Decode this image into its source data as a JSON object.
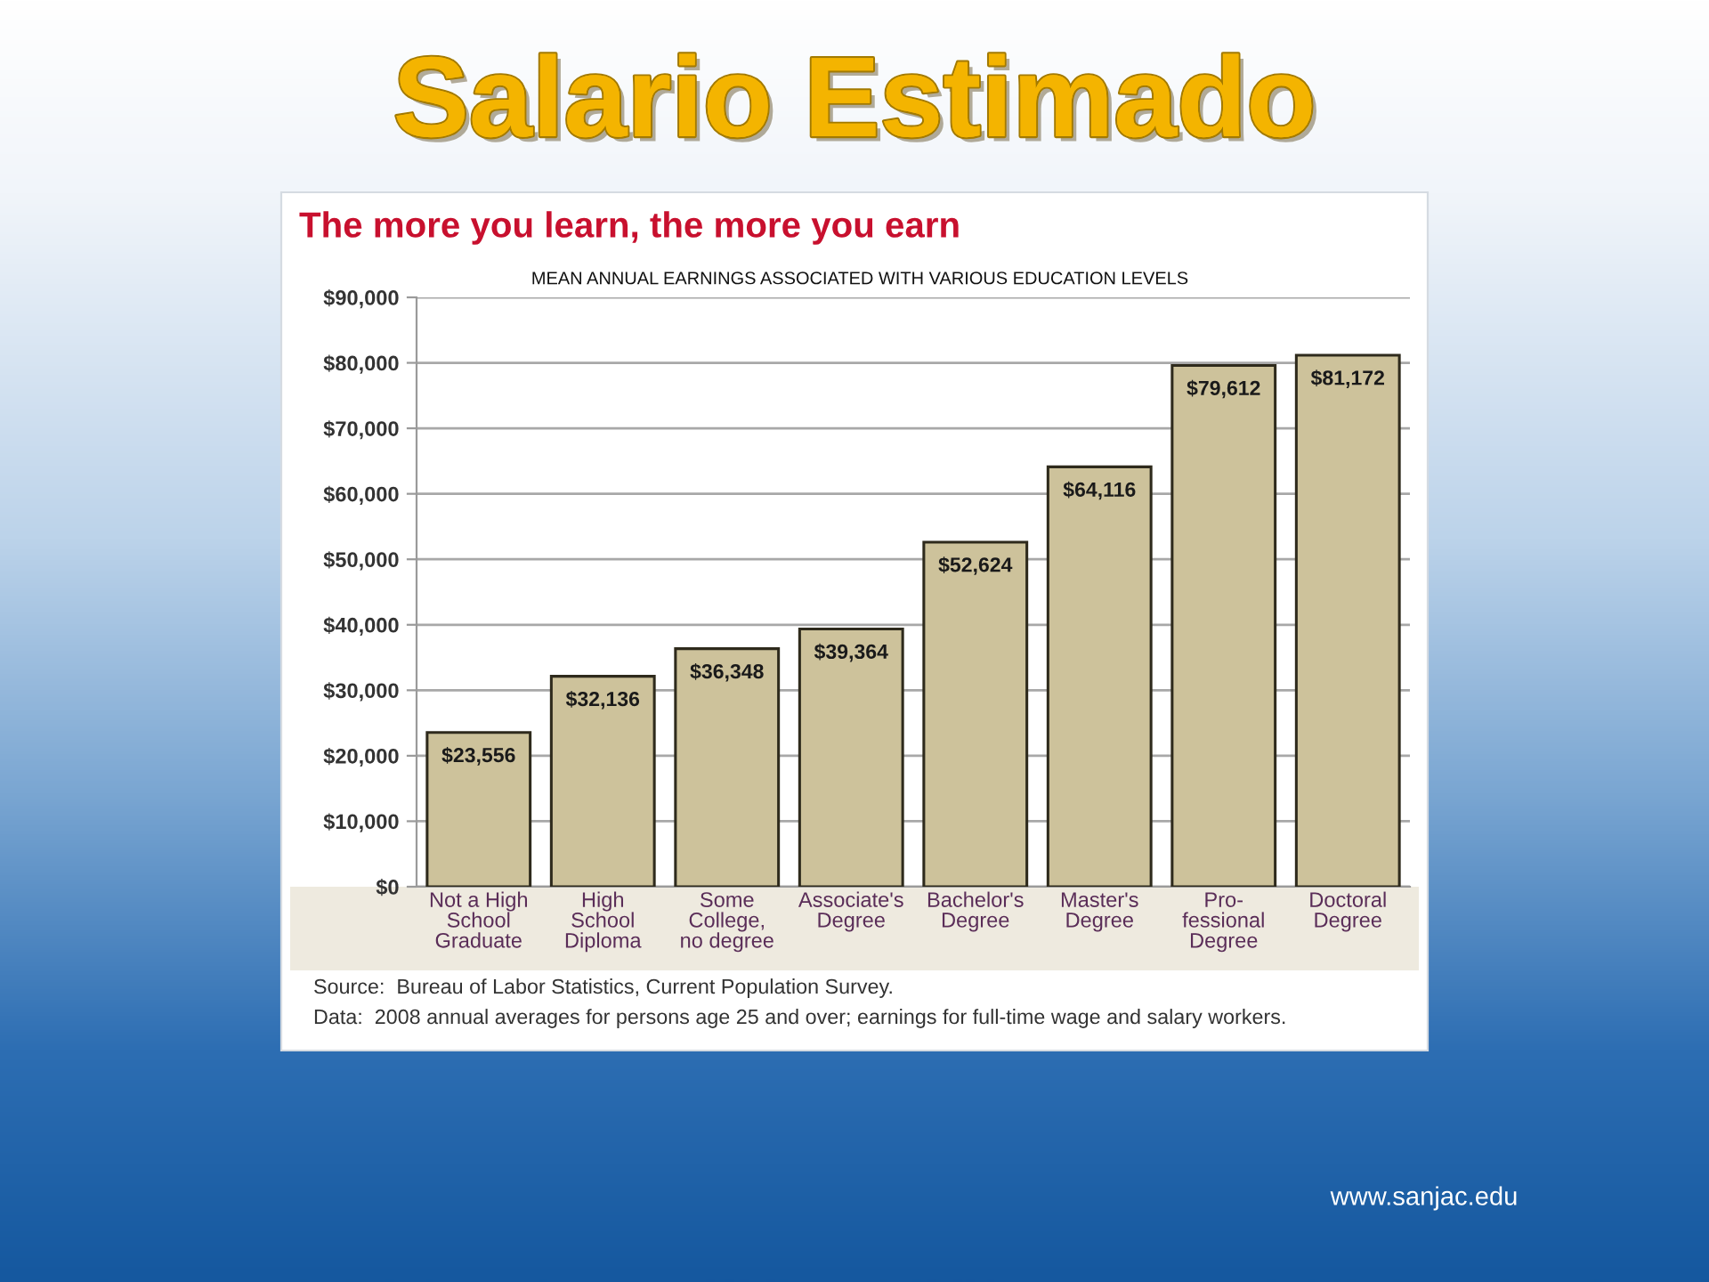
{
  "chart_data": {
    "type": "bar",
    "title": "Salario Estimado",
    "subtitle": "The more you learn, the more you earn",
    "categories": [
      "Not a High\nSchool\nGraduate",
      "High\nSchool\nDiploma",
      "Some\nCollege,\nno degree",
      "Associate's\nDegree",
      "Bachelor's\nDegree",
      "Master's\nDegree",
      "Pro-\nfessional\nDegree",
      "Doctoral\nDegree"
    ],
    "values": [
      23556,
      32136,
      36348,
      39364,
      52624,
      64116,
      79612,
      81172
    ],
    "value_labels": [
      "$23,556",
      "$32,136",
      "$36,348",
      "$39,364",
      "$52,624",
      "$64,116",
      "$79,612",
      "$81,172"
    ],
    "color": "#cdc29b",
    "ylim": [
      0,
      90000
    ],
    "yticks": [
      {
        "value": 0,
        "label": "$0"
      },
      {
        "value": 10000,
        "label": "$10,000"
      },
      {
        "value": 20000,
        "label": "$20,000"
      },
      {
        "value": 30000,
        "label": "$30,000"
      },
      {
        "value": 40000,
        "label": "$40,000"
      },
      {
        "value": 50000,
        "label": "$50,000"
      },
      {
        "value": 60000,
        "label": "$60,000"
      },
      {
        "value": 70000,
        "label": "$70,000"
      },
      {
        "value": 80000,
        "label": "$80,000"
      },
      {
        "value": 90000,
        "label": "$90,000"
      }
    ],
    "grid": "y",
    "annotations": [
      "MEAN ANNUAL EARNINGS ASSOCIATED WITH VARIOUS EDUCATION LEVELS",
      "Source:  Bureau of Labor Statistics, Current Population Survey.",
      "Data:  2008 annual averages for persons age 25 and over; earnings for full-time wage and salary workers.",
      "www.sanjac.edu"
    ]
  }
}
